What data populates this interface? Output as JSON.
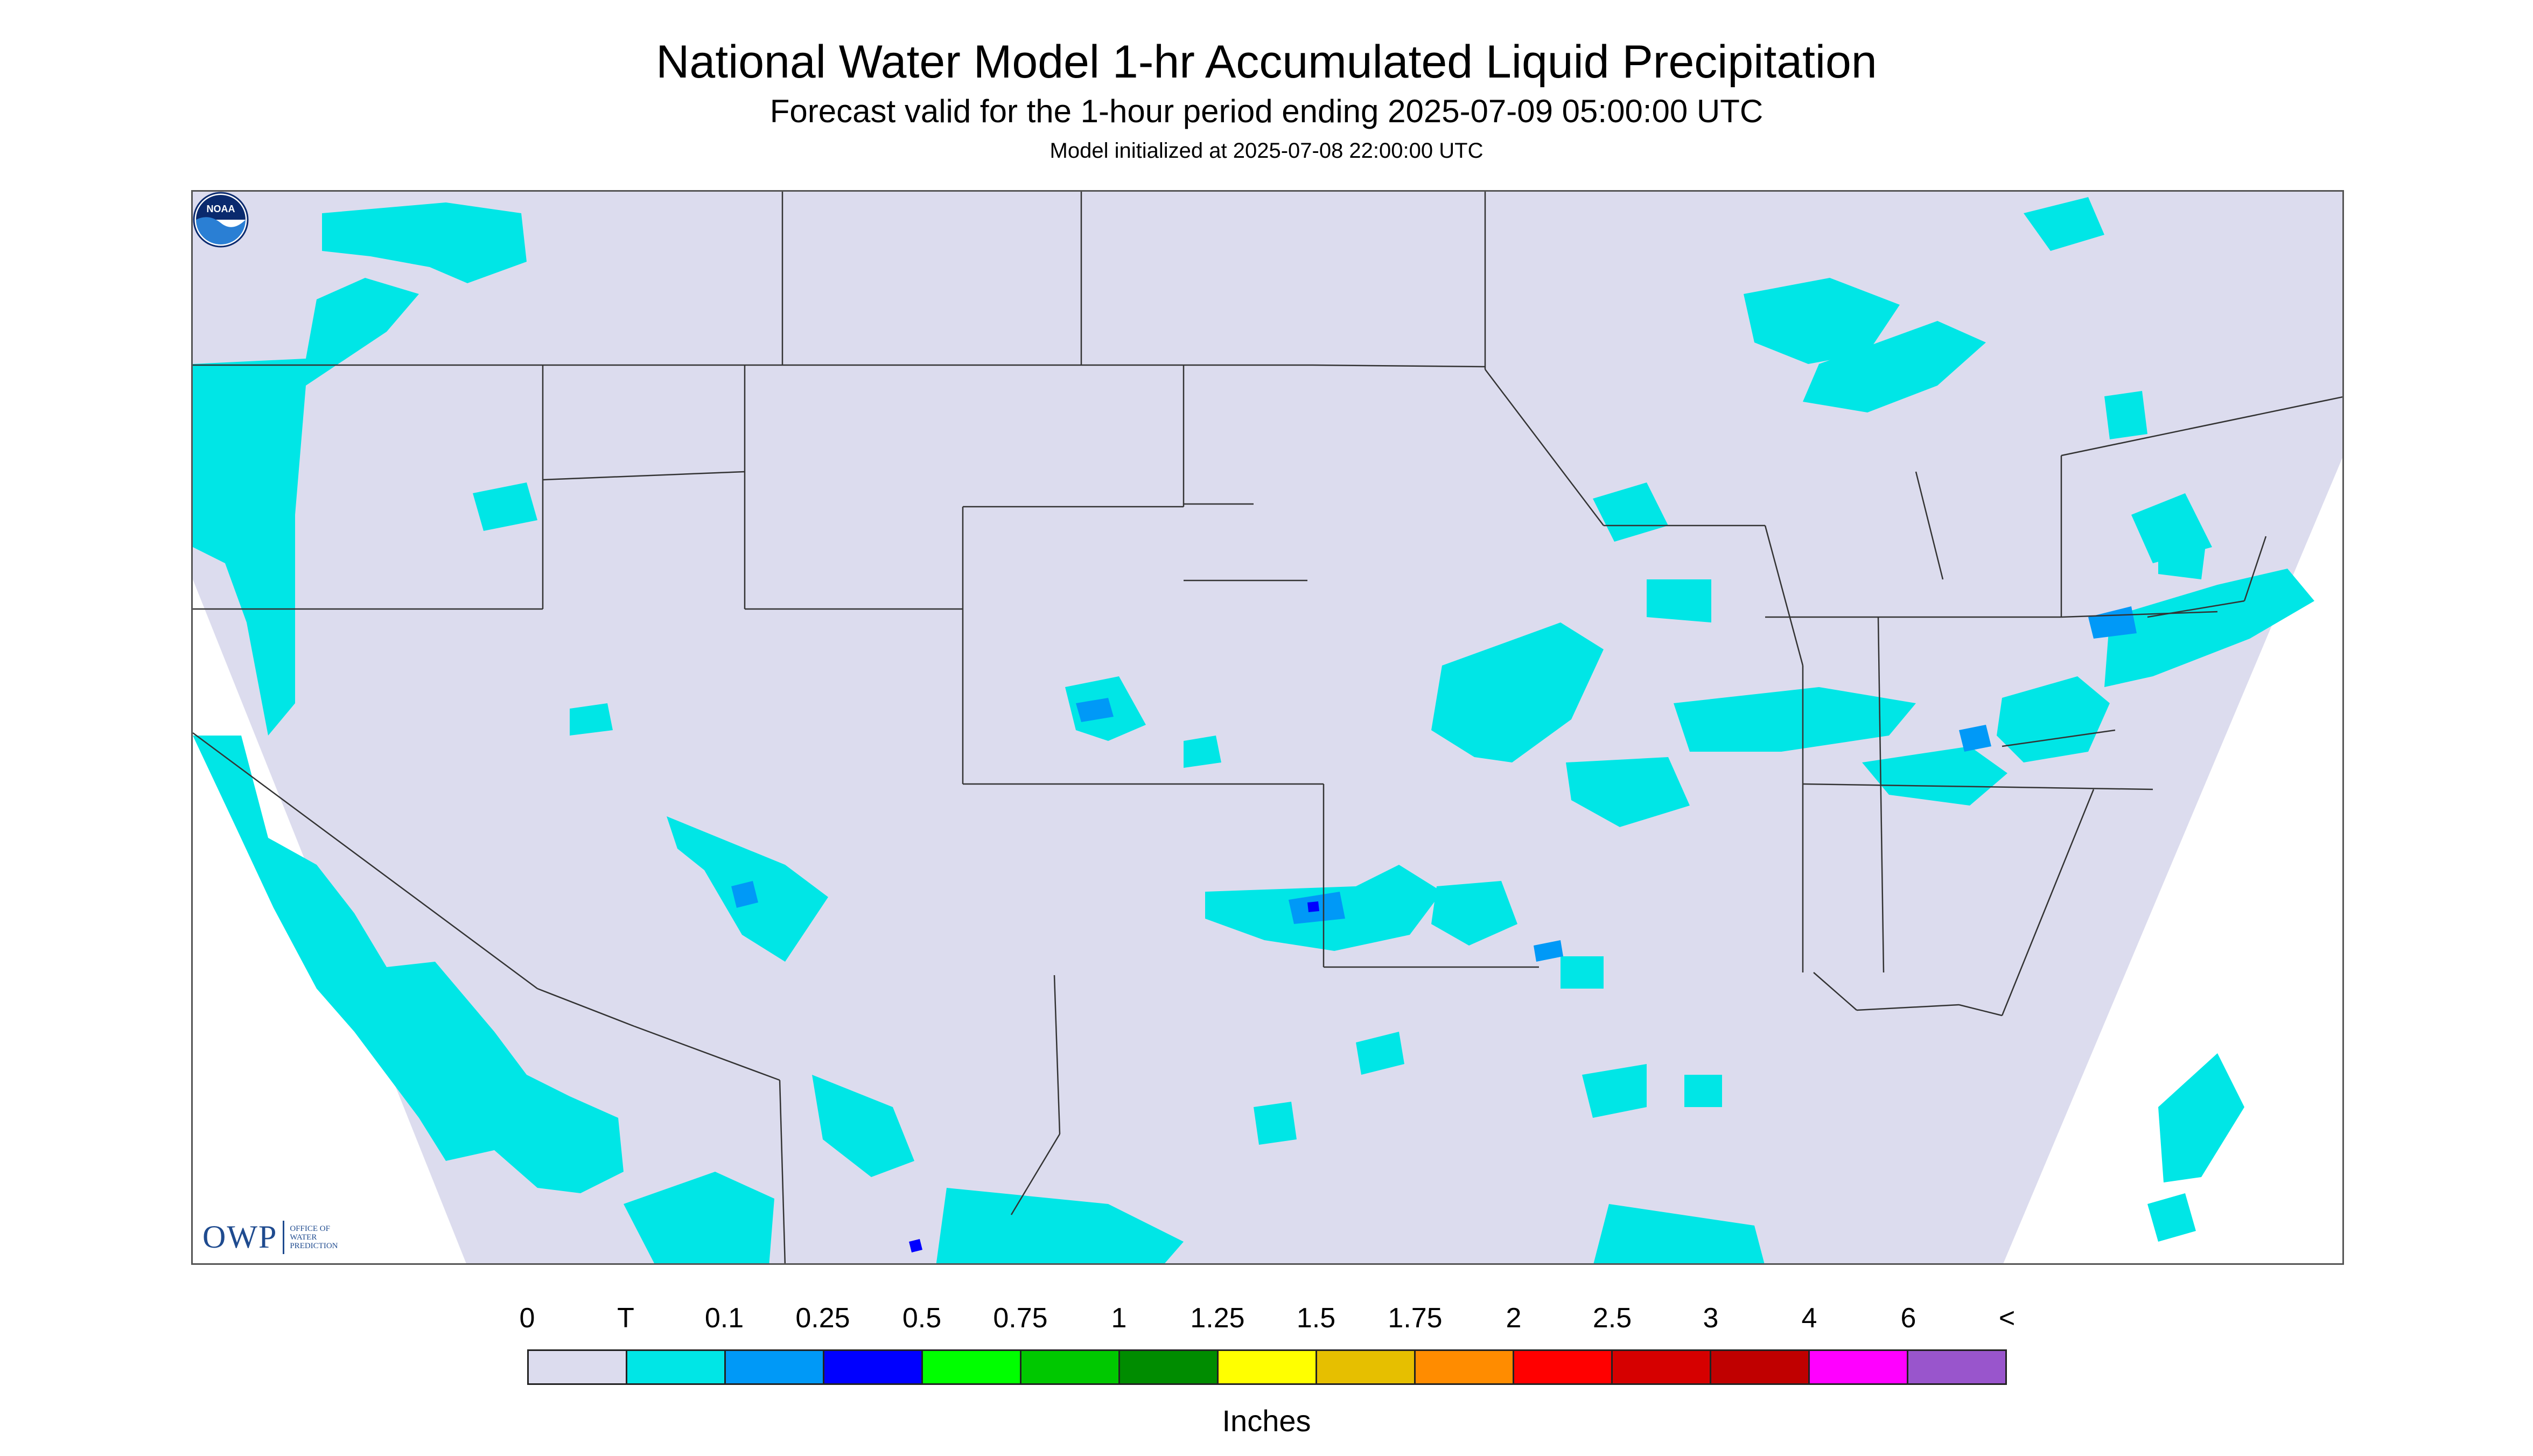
{
  "title": "National Water Model 1-hr Accumulated Liquid Precipitation",
  "subtitle": "Forecast valid for the 1-hour period ending 2025-07-09 05:00:00 UTC",
  "init_line": "Model initialized at 2025-07-08 22:00:00 UTC",
  "map": {
    "background_color": "#dcdcee",
    "outside_domain_color": "#ffffff",
    "border_color": "#333333",
    "precip_colors": {
      "trace": "#00e6e6",
      "mid": "#0099f7",
      "high": "#0000ff"
    }
  },
  "logos": {
    "owp_mark": "OWP",
    "owp_lines": [
      "OFFICE OF",
      "WATER",
      "PREDICTION"
    ],
    "noaa_icon": "noaa-logo-icon",
    "noaa_text": "NOAA"
  },
  "legend": {
    "labels": [
      "0",
      "T",
      "0.1",
      "0.25",
      "0.5",
      "0.75",
      "1",
      "1.25",
      "1.5",
      "1.75",
      "2",
      "2.5",
      "3",
      "4",
      "6",
      "<"
    ],
    "colors": [
      "#dcdcee",
      "#00e6e6",
      "#0099f7",
      "#0000ff",
      "#00ff00",
      "#00c800",
      "#008c00",
      "#ffff00",
      "#e6bf00",
      "#ff8c00",
      "#ff0000",
      "#d60000",
      "#c00000",
      "#ff00ff",
      "#9955cc"
    ],
    "units": "Inches"
  }
}
